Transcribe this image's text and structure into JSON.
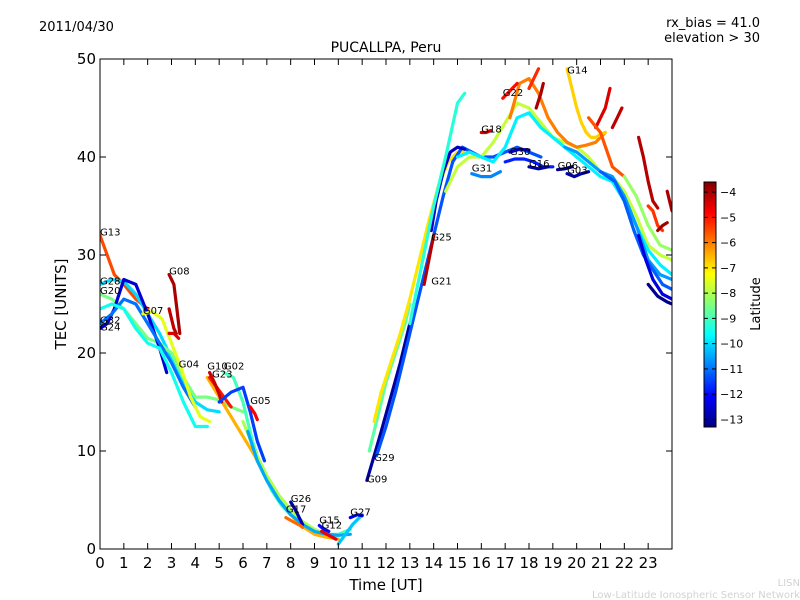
{
  "header": {
    "date": "2011/04/30",
    "rx_bias": "rx_bias = 41.0",
    "elevation": "elevation > 30"
  },
  "watermark": {
    "line1": "LISN",
    "line2": "Low-Latitude Ionospheric Sensor Network"
  },
  "colorbar": {
    "label": "Latitude",
    "ticks": [
      "−4",
      "−5",
      "−6",
      "−7",
      "−8",
      "−9",
      "−10",
      "−11",
      "−12",
      "−13"
    ],
    "range": [
      -13.3,
      -3.6
    ]
  },
  "chart_data": {
    "type": "line",
    "title": "PUCALLPA, Peru",
    "xlabel": "Time [UT]",
    "ylabel": "TEC [UNITS]",
    "xlim": [
      0,
      24
    ],
    "ylim": [
      0,
      50
    ],
    "xticks": [
      "0",
      "1",
      "2",
      "3",
      "4",
      "5",
      "6",
      "7",
      "8",
      "9",
      "10",
      "11",
      "12",
      "13",
      "14",
      "15",
      "16",
      "17",
      "18",
      "19",
      "20",
      "21",
      "22",
      "23"
    ],
    "yticks": [
      "0",
      "10",
      "20",
      "30",
      "40",
      "50"
    ],
    "grid": false,
    "color_encoding": "satellite latitude (colorbar)",
    "satellite_labels": [
      {
        "name": "G13",
        "x": 0.0,
        "y": 32.0
      },
      {
        "name": "G28",
        "x": 0.0,
        "y": 27.0
      },
      {
        "name": "G20",
        "x": 0.0,
        "y": 26.0
      },
      {
        "name": "G32",
        "x": 0.0,
        "y": 23.0
      },
      {
        "name": "G24",
        "x": 0.0,
        "y": 22.3
      },
      {
        "name": "G07",
        "x": 1.8,
        "y": 24.0
      },
      {
        "name": "G08",
        "x": 2.9,
        "y": 28.0
      },
      {
        "name": "G04",
        "x": 3.3,
        "y": 18.5
      },
      {
        "name": "G10",
        "x": 4.5,
        "y": 18.3
      },
      {
        "name": "G02",
        "x": 5.2,
        "y": 18.3
      },
      {
        "name": "G23",
        "x": 4.7,
        "y": 17.5
      },
      {
        "name": "G05",
        "x": 6.3,
        "y": 14.8
      },
      {
        "name": "G26",
        "x": 8.0,
        "y": 4.8
      },
      {
        "name": "G17",
        "x": 7.8,
        "y": 3.7
      },
      {
        "name": "G15",
        "x": 9.2,
        "y": 2.6
      },
      {
        "name": "G12",
        "x": 9.3,
        "y": 2.1
      },
      {
        "name": "G27",
        "x": 10.5,
        "y": 3.4
      },
      {
        "name": "G09",
        "x": 11.2,
        "y": 6.8
      },
      {
        "name": "G29",
        "x": 11.5,
        "y": 9.0
      },
      {
        "name": "G21",
        "x": 13.9,
        "y": 27.0
      },
      {
        "name": "G25",
        "x": 13.9,
        "y": 31.5
      },
      {
        "name": "G31",
        "x": 15.6,
        "y": 38.5
      },
      {
        "name": "G18",
        "x": 16.0,
        "y": 42.5
      },
      {
        "name": "G30",
        "x": 17.2,
        "y": 40.2
      },
      {
        "name": "G16",
        "x": 18.0,
        "y": 39.0
      },
      {
        "name": "G06",
        "x": 19.2,
        "y": 38.8
      },
      {
        "name": "G03",
        "x": 19.6,
        "y": 38.3
      },
      {
        "name": "G22",
        "x": 16.9,
        "y": 46.2
      },
      {
        "name": "G14",
        "x": 19.6,
        "y": 48.5
      }
    ],
    "series": [
      {
        "lat": -5.5,
        "x": [
          0.0,
          0.3,
          0.6,
          1.0,
          1.5,
          2.0
        ],
        "y": [
          32.0,
          30.0,
          28.0,
          27.0,
          25.5,
          24.5
        ]
      },
      {
        "lat": -10.0,
        "x": [
          0.0,
          0.5,
          1.0,
          1.5,
          2.0,
          2.5,
          3.0,
          3.5,
          4.0,
          4.5,
          5.0
        ],
        "y": [
          27.0,
          27.5,
          27.3,
          26.0,
          24.0,
          22.0,
          19.5,
          17.0,
          15.0,
          14.2,
          14.0
        ]
      },
      {
        "lat": -8.5,
        "x": [
          0.0,
          0.5,
          1.0,
          1.5,
          2.0,
          2.5,
          3.0,
          3.5,
          4.0,
          4.5,
          5.0,
          5.5,
          6.0
        ],
        "y": [
          26.0,
          25.5,
          24.5,
          23.0,
          21.5,
          21.0,
          20.0,
          17.5,
          15.5,
          15.5,
          15.2,
          14.5,
          14.0
        ]
      },
      {
        "lat": -12.5,
        "x": [
          0.0,
          0.3,
          0.6,
          1.0,
          1.5,
          2.0,
          2.5,
          2.8
        ],
        "y": [
          22.5,
          23.0,
          24.5,
          27.5,
          27.0,
          24.0,
          20.5,
          18.0
        ]
      },
      {
        "lat": -11.0,
        "x": [
          0.0,
          0.5,
          1.0,
          1.5,
          2.0,
          2.5,
          3.0,
          3.5,
          4.0
        ],
        "y": [
          23.0,
          24.0,
          25.5,
          25.0,
          23.0,
          21.0,
          19.0,
          16.5,
          14.5
        ]
      },
      {
        "lat": -9.5,
        "x": [
          0.0,
          0.5,
          1.0,
          1.5,
          2.0,
          2.5,
          3.0,
          3.5,
          4.0,
          4.5
        ],
        "y": [
          24.5,
          25.0,
          24.5,
          22.5,
          21.0,
          20.5,
          18.0,
          15.0,
          12.5,
          12.5
        ]
      },
      {
        "lat": -7.5,
        "x": [
          1.8,
          2.2,
          2.6,
          3.0,
          3.4,
          3.8,
          4.2,
          4.6
        ],
        "y": [
          24.0,
          24.2,
          23.5,
          21.0,
          18.5,
          15.5,
          13.5,
          13.0
        ]
      },
      {
        "lat": -4.0,
        "x": [
          2.9,
          3.1,
          3.2,
          3.35
        ],
        "y": [
          28.0,
          27.0,
          25.0,
          22.0
        ]
      },
      {
        "lat": -4.5,
        "x": [
          2.9,
          3.1,
          3.3
        ],
        "y": [
          22.0,
          22.0,
          21.5
        ]
      },
      {
        "lat": -4.2,
        "x": [
          2.9,
          3.0,
          3.1,
          3.2
        ],
        "y": [
          24.5,
          23.5,
          22.5,
          22.0
        ]
      },
      {
        "lat": -6.5,
        "x": [
          4.5,
          5.0,
          5.5,
          6.0,
          6.5,
          7.0,
          7.5,
          8.0,
          8.5,
          9.0,
          9.5,
          10.0
        ],
        "y": [
          17.5,
          15.5,
          13.5,
          11.5,
          9.5,
          7.0,
          5.0,
          3.5,
          2.3,
          1.5,
          1.2,
          1.0
        ]
      },
      {
        "lat": -9.0,
        "x": [
          5.2,
          5.6,
          6.0,
          6.4,
          6.8,
          7.2,
          7.6,
          8.0,
          8.5,
          9.0,
          9.5,
          10.0,
          10.5
        ],
        "y": [
          18.0,
          17.5,
          15.0,
          11.0,
          8.0,
          6.0,
          4.5,
          3.5,
          2.5,
          2.0,
          1.5,
          1.5,
          2.0
        ]
      },
      {
        "lat": -5.0,
        "x": [
          4.6,
          4.9,
          5.2,
          5.5
        ],
        "y": [
          17.5,
          16.5,
          15.5,
          14.5
        ]
      },
      {
        "lat": -4.3,
        "x": [
          4.6,
          4.8,
          5.0,
          5.1
        ],
        "y": [
          18.0,
          17.0,
          15.8,
          15.0
        ]
      },
      {
        "lat": -11.5,
        "x": [
          5.0,
          5.5,
          6.0,
          6.3,
          6.6,
          6.9
        ],
        "y": [
          15.0,
          16.0,
          16.5,
          14.0,
          11.0,
          9.0
        ]
      },
      {
        "lat": -4.8,
        "x": [
          6.3,
          6.5,
          6.6
        ],
        "y": [
          14.5,
          13.8,
          13.2
        ]
      },
      {
        "lat": -8.0,
        "x": [
          6.0,
          6.5,
          7.0,
          7.5,
          8.0,
          8.5,
          9.0,
          9.5,
          10.0
        ],
        "y": [
          13.0,
          10.0,
          7.5,
          5.5,
          4.0,
          2.8,
          2.0,
          1.5,
          1.3
        ]
      },
      {
        "lat": -10.5,
        "x": [
          6.2,
          6.6,
          7.0,
          7.5,
          8.0,
          8.5,
          9.0,
          9.5,
          10.0,
          10.5
        ],
        "y": [
          12.0,
          9.0,
          7.0,
          5.0,
          3.5,
          2.5,
          1.8,
          1.5,
          1.4,
          1.5
        ]
      },
      {
        "lat": -12.8,
        "x": [
          8.0,
          8.2,
          8.4,
          8.5
        ],
        "y": [
          4.8,
          4.0,
          3.0,
          2.5
        ]
      },
      {
        "lat": -5.8,
        "x": [
          7.8,
          8.1,
          8.4,
          8.5
        ],
        "y": [
          3.2,
          2.8,
          2.4,
          2.2
        ]
      },
      {
        "lat": -12.0,
        "x": [
          9.2,
          9.4,
          9.6
        ],
        "y": [
          2.4,
          2.0,
          1.8
        ]
      },
      {
        "lat": -4.6,
        "x": [
          9.3,
          9.6,
          9.9
        ],
        "y": [
          1.8,
          1.4,
          1.0
        ]
      },
      {
        "lat": -10.2,
        "x": [
          10.0,
          10.3,
          10.6,
          11.0
        ],
        "y": [
          0.5,
          1.5,
          2.5,
          3.5
        ]
      },
      {
        "lat": -12.3,
        "x": [
          10.5,
          10.8,
          11.0
        ],
        "y": [
          3.2,
          3.5,
          3.4
        ]
      },
      {
        "lat": -13.0,
        "x": [
          11.2,
          11.5,
          11.8,
          12.2,
          12.6,
          13.0
        ],
        "y": [
          7.0,
          9.5,
          12.0,
          15.5,
          19.0,
          23.0
        ]
      },
      {
        "lat": -8.8,
        "x": [
          11.3,
          11.6,
          12.0,
          12.4,
          12.8,
          13.0
        ],
        "y": [
          10.0,
          13.0,
          17.0,
          20.0,
          23.0,
          25.0
        ]
      },
      {
        "lat": -7.0,
        "x": [
          11.5,
          11.8,
          12.2,
          12.6,
          13.0,
          13.4,
          13.8,
          14.2,
          14.6,
          15.0,
          15.5,
          16.0
        ],
        "y": [
          13.0,
          16.0,
          19.0,
          22.0,
          25.5,
          29.5,
          33.5,
          37.0,
          39.5,
          40.5,
          40.5,
          40.0
        ]
      },
      {
        "lat": -11.3,
        "x": [
          11.6,
          12.0,
          12.4,
          12.8,
          13.2,
          13.6,
          14.0,
          14.4,
          14.8,
          15.2,
          15.6,
          16.0,
          16.5,
          17.0,
          17.5,
          18.0,
          18.5
        ],
        "y": [
          9.5,
          12.5,
          16.0,
          20.0,
          24.0,
          28.0,
          32.0,
          36.0,
          39.5,
          41.0,
          40.5,
          40.0,
          40.0,
          40.5,
          41.0,
          40.5,
          40.0
        ]
      },
      {
        "lat": -4.1,
        "x": [
          13.6,
          13.8,
          14.0
        ],
        "y": [
          27.0,
          29.5,
          32.0
        ]
      },
      {
        "lat": -12.6,
        "x": [
          13.9,
          14.1,
          14.4,
          14.7,
          15.0,
          15.3
        ],
        "y": [
          32.5,
          35.5,
          38.5,
          40.5,
          41.0,
          40.8
        ]
      },
      {
        "lat": -9.3,
        "x": [
          13.0,
          13.5,
          14.0,
          14.5,
          15.0,
          15.3
        ],
        "y": [
          23.0,
          29.0,
          35.0,
          40.0,
          45.5,
          46.5
        ]
      },
      {
        "lat": -7.8,
        "x": [
          14.5,
          15.0,
          15.5,
          16.0,
          16.5,
          17.0,
          17.5,
          18.0,
          18.5,
          19.0,
          19.5,
          20.0,
          20.5,
          21.0,
          21.5,
          22.0,
          22.5,
          23.0,
          23.5,
          24.0
        ],
        "y": [
          36.5,
          39.0,
          40.0,
          40.0,
          41.5,
          43.5,
          45.5,
          45.0,
          43.5,
          42.0,
          41.5,
          41.0,
          40.0,
          38.5,
          38.0,
          36.5,
          34.0,
          31.0,
          30.0,
          29.5
        ]
      },
      {
        "lat": -10.8,
        "x": [
          15.6,
          16.0,
          16.4,
          16.8
        ],
        "y": [
          38.3,
          38.0,
          38.0,
          38.5
        ]
      },
      {
        "lat": -9.8,
        "x": [
          15.0,
          15.5,
          16.0,
          16.5,
          17.0,
          17.5,
          18.0,
          18.5,
          19.0,
          19.5,
          20.0,
          20.5,
          21.0,
          21.5,
          22.0,
          22.5,
          23.0,
          23.5,
          24.0
        ],
        "y": [
          40.0,
          40.5,
          40.0,
          39.5,
          41.0,
          44.0,
          44.5,
          43.0,
          42.0,
          41.0,
          40.0,
          39.0,
          38.0,
          37.5,
          35.5,
          33.0,
          30.5,
          29.0,
          28.0
        ]
      },
      {
        "lat": -4.4,
        "x": [
          16.0,
          16.2,
          16.4
        ],
        "y": [
          42.5,
          42.5,
          42.7
        ]
      },
      {
        "lat": -6.0,
        "x": [
          17.2,
          17.6,
          18.0,
          18.4,
          18.8,
          19.2,
          19.6,
          20.0,
          20.4,
          20.8,
          21.2
        ],
        "y": [
          44.0,
          47.5,
          48.0,
          46.5,
          44.0,
          42.5,
          41.5,
          41.0,
          41.2,
          41.5,
          42.5
        ]
      },
      {
        "lat": -4.9,
        "x": [
          16.9,
          17.1,
          17.3,
          17.5
        ],
        "y": [
          46.0,
          46.5,
          47.0,
          47.5
        ]
      },
      {
        "lat": -5.2,
        "x": [
          18.0,
          18.2,
          18.4
        ],
        "y": [
          47.0,
          48.0,
          49.0
        ]
      },
      {
        "lat": -4.0,
        "x": [
          18.3,
          18.5,
          18.6
        ],
        "y": [
          45.0,
          46.5,
          47.5
        ]
      },
      {
        "lat": -12.7,
        "x": [
          17.2,
          17.6,
          18.0
        ],
        "y": [
          40.5,
          40.8,
          40.7
        ]
      },
      {
        "lat": -11.8,
        "x": [
          17.0,
          17.4,
          17.8,
          18.2,
          18.6,
          19.0
        ],
        "y": [
          39.5,
          39.8,
          39.8,
          39.5,
          39.0,
          39.0
        ]
      },
      {
        "lat": -12.9,
        "x": [
          18.0,
          18.4,
          18.8
        ],
        "y": [
          39.0,
          38.8,
          39.0
        ]
      },
      {
        "lat": -13.1,
        "x": [
          19.2,
          19.5,
          19.8
        ],
        "y": [
          38.7,
          38.8,
          39.0
        ]
      },
      {
        "lat": -12.9,
        "x": [
          19.6,
          19.9,
          20.2,
          20.5
        ],
        "y": [
          38.3,
          38.0,
          38.3,
          38.5
        ]
      },
      {
        "lat": -10.6,
        "x": [
          19.5,
          20.0,
          20.5,
          21.0,
          21.5,
          22.0,
          22.5,
          23.0,
          23.5,
          24.0
        ],
        "y": [
          41.0,
          40.5,
          39.5,
          38.5,
          38.0,
          36.0,
          33.0,
          29.5,
          28.0,
          27.5
        ]
      },
      {
        "lat": -6.8,
        "x": [
          19.6,
          19.8,
          20.0,
          20.2,
          20.4,
          20.6,
          20.8,
          21.0,
          21.2
        ],
        "y": [
          49.0,
          47.0,
          45.0,
          43.5,
          42.5,
          42.0,
          42.0,
          42.3,
          42.5
        ]
      },
      {
        "lat": -4.5,
        "x": [
          20.8,
          21.0,
          21.2,
          21.4
        ],
        "y": [
          43.0,
          44.0,
          45.0,
          47.0
        ]
      },
      {
        "lat": -4.2,
        "x": [
          21.5,
          21.7,
          21.9
        ],
        "y": [
          43.0,
          44.0,
          45.0
        ]
      },
      {
        "lat": -5.6,
        "x": [
          20.5,
          21.0,
          21.5,
          22.0
        ],
        "y": [
          44.0,
          42.5,
          39.0,
          38.0
        ]
      },
      {
        "lat": -11.2,
        "x": [
          21.0,
          21.3,
          21.6,
          22.0,
          22.4,
          22.8,
          23.2,
          23.6,
          24.0
        ],
        "y": [
          38.5,
          38.0,
          37.5,
          35.5,
          32.5,
          30.0,
          28.5,
          27.0,
          26.5
        ]
      },
      {
        "lat": -12.4,
        "x": [
          22.6,
          22.9,
          23.2,
          23.6,
          24.0
        ],
        "y": [
          32.0,
          29.5,
          27.5,
          26.0,
          25.5
        ]
      },
      {
        "lat": -13.2,
        "x": [
          23.0,
          23.4,
          23.8,
          24.0
        ],
        "y": [
          27.0,
          25.8,
          25.2,
          25.0
        ]
      },
      {
        "lat": -4.1,
        "x": [
          22.6,
          22.8,
          23.0,
          23.2,
          23.4
        ],
        "y": [
          42.0,
          40.0,
          37.5,
          35.5,
          34.8
        ]
      },
      {
        "lat": -5.3,
        "x": [
          23.0,
          23.2,
          23.4,
          23.6
        ],
        "y": [
          35.0,
          34.5,
          33.0,
          32.5
        ]
      },
      {
        "lat": -3.9,
        "x": [
          23.4,
          23.6,
          23.8
        ],
        "y": [
          32.5,
          33.0,
          33.3
        ]
      },
      {
        "lat": -4.0,
        "x": [
          23.8,
          23.9,
          24.0
        ],
        "y": [
          36.5,
          35.5,
          34.5
        ]
      },
      {
        "lat": -8.2,
        "x": [
          22.0,
          22.5,
          23.0,
          23.5,
          24.0
        ],
        "y": [
          38.0,
          36.0,
          33.0,
          31.0,
          30.5
        ]
      }
    ]
  }
}
